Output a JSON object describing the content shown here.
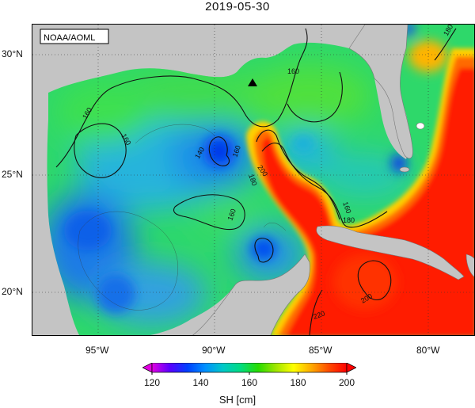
{
  "title": "2019-05-30",
  "credit": "NOAA/AOML",
  "colorbar": {
    "label": "SH [cm]",
    "ticks": [
      "120",
      "140",
      "160",
      "180",
      "200"
    ],
    "stops": [
      "#e100e1",
      "#5a00ff",
      "#0040ff",
      "#0090ff",
      "#00c8c8",
      "#00dc82",
      "#28dc00",
      "#a0e600",
      "#ffff00",
      "#ffaa00",
      "#ff4b00",
      "#ff0000"
    ]
  },
  "axes": {
    "lon_labels": [
      "95°W",
      "90°W",
      "85°W",
      "80°W"
    ],
    "lat_labels": [
      "30°N",
      "25°N",
      "20°N"
    ]
  },
  "contour_labels": [
    {
      "text": "160",
      "name": "contour-label-160-north"
    },
    {
      "text": "160",
      "name": "contour-label-160-west"
    },
    {
      "text": "160",
      "name": "contour-label-160-west-2"
    },
    {
      "text": "140",
      "name": "contour-label-140-center"
    },
    {
      "text": "160",
      "name": "contour-label-160-center"
    },
    {
      "text": "180",
      "name": "contour-label-180-center"
    },
    {
      "text": "200",
      "name": "contour-label-200-loop"
    },
    {
      "text": "160",
      "name": "contour-label-160-southcenter"
    },
    {
      "text": "160",
      "name": "contour-label-160-florida"
    },
    {
      "text": "180",
      "name": "contour-label-180-florida"
    },
    {
      "text": "180",
      "name": "contour-label-180-ne"
    },
    {
      "text": "200",
      "name": "contour-label-200-cayman"
    },
    {
      "text": "220",
      "name": "contour-label-220-south"
    }
  ],
  "colors": {
    "land": "#c4c4c4",
    "frame": "#000000"
  }
}
